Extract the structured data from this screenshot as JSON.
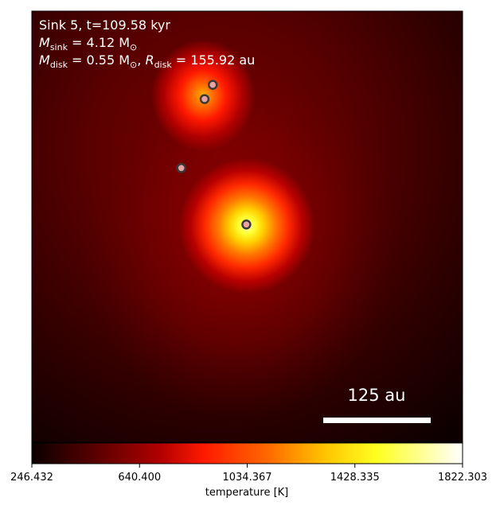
{
  "chart_data": {
    "type": "heatmap",
    "annotation": {
      "line1": "Sink 5, t=109.58 kyr",
      "line2_symbol": "M",
      "line2_sub": "sink",
      "line2_rest": " = 4.12 M",
      "line2_sun": "⊙",
      "line3_symbol_a": "M",
      "line3_sub_a": "disk",
      "line3_rest_a": " = 0.55 M",
      "line3_sun_a": "⊙",
      "line3_sep": ", ",
      "line3_symbol_b": "R",
      "line3_sub_b": "disk",
      "line3_rest_b": " = 155.92 au"
    },
    "scale_bar": {
      "label": "125 au",
      "length_au": 125
    },
    "colorbar": {
      "label": "temperature [K]",
      "min": 246.432,
      "max": 1822.303,
      "ticks": [
        "246.432",
        "640.400",
        "1034.367",
        "1428.335",
        "1822.303"
      ],
      "colormap": "hot"
    },
    "hotspots": [
      {
        "name": "primary",
        "x_frac": 0.5,
        "y_frac": 0.495,
        "peak_K": 1822.3
      },
      {
        "name": "upper",
        "x_frac": 0.4,
        "y_frac": 0.195,
        "peak_K": 1250
      }
    ],
    "sinks": [
      {
        "name": "sink-a",
        "x_frac": 0.42,
        "y_frac": 0.171
      },
      {
        "name": "sink-b",
        "x_frac": 0.401,
        "y_frac": 0.204
      },
      {
        "name": "sink-c",
        "x_frac": 0.347,
        "y_frac": 0.364
      },
      {
        "name": "sink-main",
        "x_frac": 0.498,
        "y_frac": 0.495
      }
    ],
    "colors": {
      "hot_stops": [
        "#0b0000",
        "#5a0000",
        "#b30000",
        "#ff1a00",
        "#ff7700",
        "#ffd000",
        "#ffff40",
        "#ffffff"
      ],
      "sink_fill": "#e9a3a3",
      "sink_edge": "#3a3a3a",
      "annotation_text": "#ffffff"
    }
  }
}
